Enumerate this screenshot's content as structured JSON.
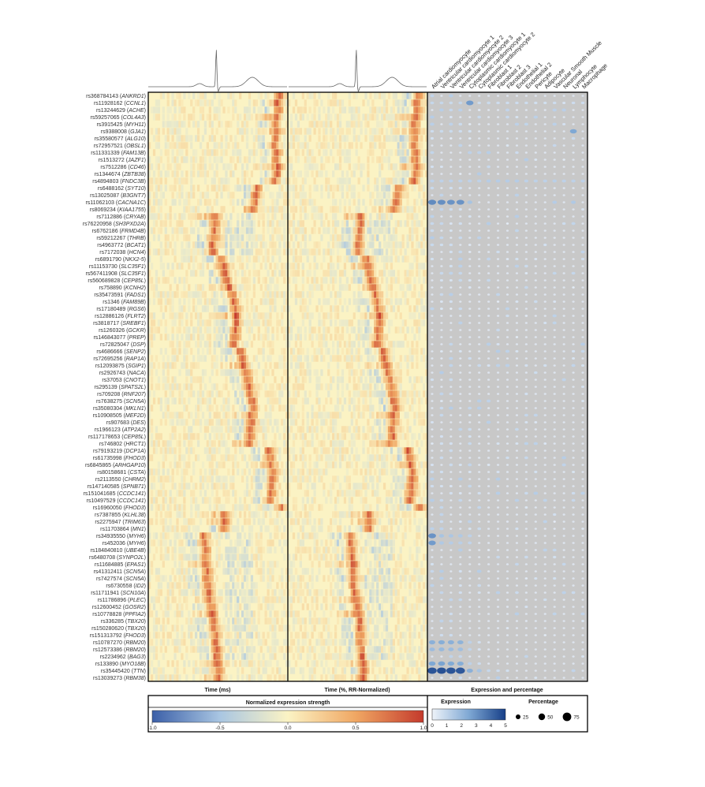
{
  "chart_data": {
    "type": "heatmap",
    "panel_titles": [
      "Time (ms)",
      "Time (%, RR-Normalized)",
      "Expression and percentage"
    ],
    "snps": [
      {
        "id": "rs368784143",
        "gene": "ANKRD1",
        "peak": 0.94
      },
      {
        "id": "rs11928162",
        "gene": "CCNL1",
        "peak": 0.92
      },
      {
        "id": "rs13244629",
        "gene": "ACHE",
        "peak": 0.93
      },
      {
        "id": "rs59257065",
        "gene": "COL4A3",
        "peak": 0.92
      },
      {
        "id": "rs3915425",
        "gene": "MYH11",
        "peak": 0.91
      },
      {
        "id": "rs9388008",
        "gene": "GJA1",
        "peak": 0.92
      },
      {
        "id": "rs35580577",
        "gene": "ALG10",
        "peak": 0.91
      },
      {
        "id": "rs72957521",
        "gene": "OBSL1",
        "peak": 0.9
      },
      {
        "id": "rs11331339",
        "gene": "FAM13B",
        "peak": 0.92
      },
      {
        "id": "rs1513272",
        "gene": "JAZF1",
        "peak": 0.91
      },
      {
        "id": "rs7512286",
        "gene": "CD46",
        "peak": 0.93
      },
      {
        "id": "rs1344674",
        "gene": "ZBTB38",
        "peak": 0.92
      },
      {
        "id": "rs4894803",
        "gene": "FNDC3B",
        "peak": 0.9
      },
      {
        "id": "rs6488162",
        "gene": "SYT10",
        "peak": 0.78
      },
      {
        "id": "rs13025087",
        "gene": "B3GNT7",
        "peak": 0.77
      },
      {
        "id": "rs11062103",
        "gene": "CACNA1C",
        "peak": 0.76
      },
      {
        "id": "rs8069234",
        "gene": "KIAA1755",
        "peak": 0.75
      },
      {
        "id": "rs7112886",
        "gene": "CRYAB",
        "peak": 0.48
      },
      {
        "id": "rs76220958",
        "gene": "SH3PXD2A",
        "peak": 0.48
      },
      {
        "id": "rs6762186",
        "gene": "FRMD4B",
        "peak": 0.47
      },
      {
        "id": "rs59212267",
        "gene": "THRB",
        "peak": 0.47
      },
      {
        "id": "rs4963772",
        "gene": "BCAT1",
        "peak": 0.46
      },
      {
        "id": "rs7172038",
        "gene": "HCN4",
        "peak": 0.46
      },
      {
        "id": "rs6891790",
        "gene": "NKX2-5",
        "peak": 0.52
      },
      {
        "id": "rs11153730",
        "gene": "SLC35F1",
        "peak": 0.54
      },
      {
        "id": "rs567411908",
        "gene": "SLC35F1",
        "peak": 0.55
      },
      {
        "id": "rs560689828",
        "gene": "CEP85L",
        "peak": 0.56
      },
      {
        "id": "rs758890",
        "gene": "KCNH2",
        "peak": 0.58
      },
      {
        "id": "rs35473591",
        "gene": "FADS1",
        "peak": 0.6
      },
      {
        "id": "rs1346",
        "gene": "FAM89B",
        "peak": 0.61
      },
      {
        "id": "rs17180489",
        "gene": "RGS6",
        "peak": 0.62
      },
      {
        "id": "rs12886126",
        "gene": "FLRT2",
        "peak": 0.63
      },
      {
        "id": "rs3818717",
        "gene": "SREBF1",
        "peak": 0.63
      },
      {
        "id": "rs1260326",
        "gene": "GCKR",
        "peak": 0.62
      },
      {
        "id": "rs146843077",
        "gene": "PREP",
        "peak": 0.62
      },
      {
        "id": "rs72825047",
        "gene": "DSP",
        "peak": 0.61
      },
      {
        "id": "rs4686666",
        "gene": "SENP2",
        "peak": 0.66
      },
      {
        "id": "rs72695256",
        "gene": "RAP1A",
        "peak": 0.67
      },
      {
        "id": "rs12093875",
        "gene": "SGIP1",
        "peak": 0.68
      },
      {
        "id": "rs2926743",
        "gene": "NACA",
        "peak": 0.7
      },
      {
        "id": "rs37053",
        "gene": "CNOT1",
        "peak": 0.71
      },
      {
        "id": "rs295139",
        "gene": "SPATS2L",
        "peak": 0.72
      },
      {
        "id": "rs709208",
        "gene": "RNF207",
        "peak": 0.73
      },
      {
        "id": "rs7638275",
        "gene": "SCN5A",
        "peak": 0.74
      },
      {
        "id": "rs35080304",
        "gene": "MKLN1",
        "peak": 0.75
      },
      {
        "id": "rs10908505",
        "gene": "MEF2D",
        "peak": 0.74
      },
      {
        "id": "rs907683",
        "gene": "DES",
        "peak": 0.74
      },
      {
        "id": "rs1966123",
        "gene": "ATP2A2",
        "peak": 0.73
      },
      {
        "id": "rs117178653",
        "gene": "CEP85L",
        "peak": 0.73
      },
      {
        "id": "rs746802",
        "gene": "HRCT1",
        "peak": 0.72
      },
      {
        "id": "rs79193219",
        "gene": "DCP1A",
        "peak": 0.86
      },
      {
        "id": "rs61735998",
        "gene": "FHOD3",
        "peak": 0.87
      },
      {
        "id": "rs6845865",
        "gene": "ARHGAP10",
        "peak": 0.88
      },
      {
        "id": "rs80158681",
        "gene": "CSTA",
        "peak": 0.89
      },
      {
        "id": "rs2113550",
        "gene": "CHRM2",
        "peak": 0.89
      },
      {
        "id": "rs147140585",
        "gene": "SPNB71",
        "peak": 0.88
      },
      {
        "id": "rs151041685",
        "gene": "CCDC141",
        "peak": 0.88
      },
      {
        "id": "rs10497529",
        "gene": "CCDC141",
        "peak": 0.87
      },
      {
        "id": "rs16960050",
        "gene": "FHOD3",
        "peak": 0.95
      },
      {
        "id": "rs7387855",
        "gene": "KLHL38",
        "peak": 0.55
      },
      {
        "id": "rs2275947",
        "gene": "TRIM63",
        "peak": 0.55
      },
      {
        "id": "rs11703864",
        "gene": "MN1",
        "peak": 0.54
      },
      {
        "id": "rs34935550",
        "gene": "MYH6",
        "peak": 0.4
      },
      {
        "id": "rs452036",
        "gene": "MYH6",
        "peak": 0.4
      },
      {
        "id": "rs184840810",
        "gene": "UBE4B",
        "peak": 0.41
      },
      {
        "id": "rs6480708",
        "gene": "SYNPO2L",
        "peak": 0.41
      },
      {
        "id": "rs11684885",
        "gene": "EPAS1",
        "peak": 0.42
      },
      {
        "id": "rs41312411",
        "gene": "SCN5A",
        "peak": 0.42
      },
      {
        "id": "rs7427574",
        "gene": "SCN5A",
        "peak": 0.42
      },
      {
        "id": "rs6730558",
        "gene": "ID2",
        "peak": 0.42
      },
      {
        "id": "rs11711941",
        "gene": "SCN10A",
        "peak": 0.43
      },
      {
        "id": "rs11786896",
        "gene": "PLEC",
        "peak": 0.44
      },
      {
        "id": "rs12600452",
        "gene": "GOSR2",
        "peak": 0.45
      },
      {
        "id": "rs10778828",
        "gene": "PPFIA2",
        "peak": 0.46
      },
      {
        "id": "rs336285",
        "gene": "TBX20",
        "peak": 0.47
      },
      {
        "id": "rs150280620",
        "gene": "TBX20",
        "peak": 0.47
      },
      {
        "id": "rs151313792",
        "gene": "FHOD3",
        "peak": 0.48
      },
      {
        "id": "rs10787270",
        "gene": "RBM20",
        "peak": 0.48
      },
      {
        "id": "rs12573386",
        "gene": "RBM20",
        "peak": 0.49
      },
      {
        "id": "rs2234962",
        "gene": "BAG3",
        "peak": 0.49
      },
      {
        "id": "rs133890",
        "gene": "MYO18B",
        "peak": 0.5
      },
      {
        "id": "rs35445420",
        "gene": "TTN",
        "peak": 0.5
      },
      {
        "id": "rs13039273",
        "gene": "RBM38",
        "peak": 0.5
      }
    ],
    "cell_types": [
      "Atrial cardiomyocyte",
      "Ventricular cardiomyocyte 1",
      "Ventricular cardiomyocyte 2",
      "Ventricular cardiomyocyte 3",
      "Cytoplasmic cardiomyocyte 1",
      "Cytoplasmic cardiomyocyte 2",
      "Fibroblast 1",
      "Fibroblast 2",
      "Fibroblast 3",
      "Endothelial 1",
      "Endothelial 2",
      "Pericyte",
      "Adipocyte",
      "Vascular Smooth Muscle",
      "Neuronal",
      "Lymphocyte",
      "Macrophage"
    ],
    "expression_highlights": [
      {
        "row": "rs11062103",
        "values": [
          3.2,
          3.1,
          3.0,
          3.0,
          1.5,
          0,
          0,
          0,
          0,
          0,
          0,
          0,
          0,
          1.2,
          0,
          1.3,
          0
        ]
      },
      {
        "row": "rs35445420",
        "values": [
          4.5,
          4.6,
          4.5,
          4.4,
          2.2,
          1.5,
          0.8,
          0.6,
          0.5,
          0,
          0,
          0,
          0,
          0,
          0,
          0.9,
          0
        ]
      },
      {
        "row": "rs133890",
        "values": [
          2.5,
          2.6,
          2.4,
          2.3,
          1.0,
          0.6,
          0,
          0,
          0,
          0,
          0,
          0,
          0,
          0,
          0,
          0,
          0
        ]
      },
      {
        "row": "rs10787270",
        "values": [
          2.2,
          2.3,
          2.2,
          2.1,
          1.0,
          0.5,
          0,
          0,
          0,
          0,
          0,
          0,
          0,
          0,
          0,
          0,
          0
        ]
      },
      {
        "row": "rs12573386",
        "values": [
          1.8,
          1.9,
          1.8,
          1.7,
          0.9,
          0.4,
          0,
          0,
          0,
          0,
          0,
          0,
          0,
          0,
          0,
          0,
          0
        ]
      },
      {
        "row": "rs34935550",
        "values": [
          3.0,
          1.5,
          1.4,
          1.3,
          1.0,
          0,
          0,
          0,
          0,
          0,
          0,
          0,
          0,
          0,
          0,
          0,
          0
        ]
      },
      {
        "row": "rs452036",
        "values": [
          2.8,
          1.3,
          1.2,
          1.1,
          0.9,
          0,
          0,
          0,
          0,
          0,
          0,
          0,
          0,
          0,
          0,
          0,
          0
        ]
      },
      {
        "row": "rs9388008",
        "values": [
          0.6,
          0.7,
          0.7,
          0.6,
          0.5,
          0,
          0,
          0,
          0,
          0,
          0,
          0,
          0,
          0,
          0,
          2.5,
          0
        ]
      },
      {
        "row": "rs11928162",
        "values": [
          0.8,
          0.8,
          0.7,
          0.8,
          2.8,
          0.6,
          0.7,
          0.6,
          0.6,
          0.6,
          0.6,
          0.5,
          0.5,
          0.6,
          0.4,
          0.6,
          0.6
        ]
      },
      {
        "row": "rs4894803",
        "values": [
          1.0,
          1.0,
          1.0,
          1.0,
          1.0,
          1.0,
          1.2,
          1.2,
          1.2,
          1.2,
          1.0,
          1.0,
          1.0,
          1.1,
          1.0,
          1.0,
          1.0
        ]
      }
    ],
    "color_legend": {
      "title": "Normalized expression strength",
      "ticks": [
        "-1.0",
        "-0.5",
        "0.0",
        "0.5",
        "1.0"
      ],
      "range": [
        -1,
        1
      ]
    },
    "expression_legend": {
      "title": "Expression",
      "ticks": [
        "0",
        "1",
        "2",
        "3",
        "4",
        "5"
      ],
      "range": [
        0,
        5
      ]
    },
    "percentage_legend": {
      "title": "Percentage",
      "ticks": [
        "25",
        "50",
        "75"
      ]
    },
    "colors": {
      "neg": "#3b5fa8",
      "zero": "#fbf3c4",
      "pos": "#c43a2c",
      "dot_bg": "#c8c8c8",
      "dot_low": "#e6edf6",
      "dot_high": "#163f88"
    }
  }
}
